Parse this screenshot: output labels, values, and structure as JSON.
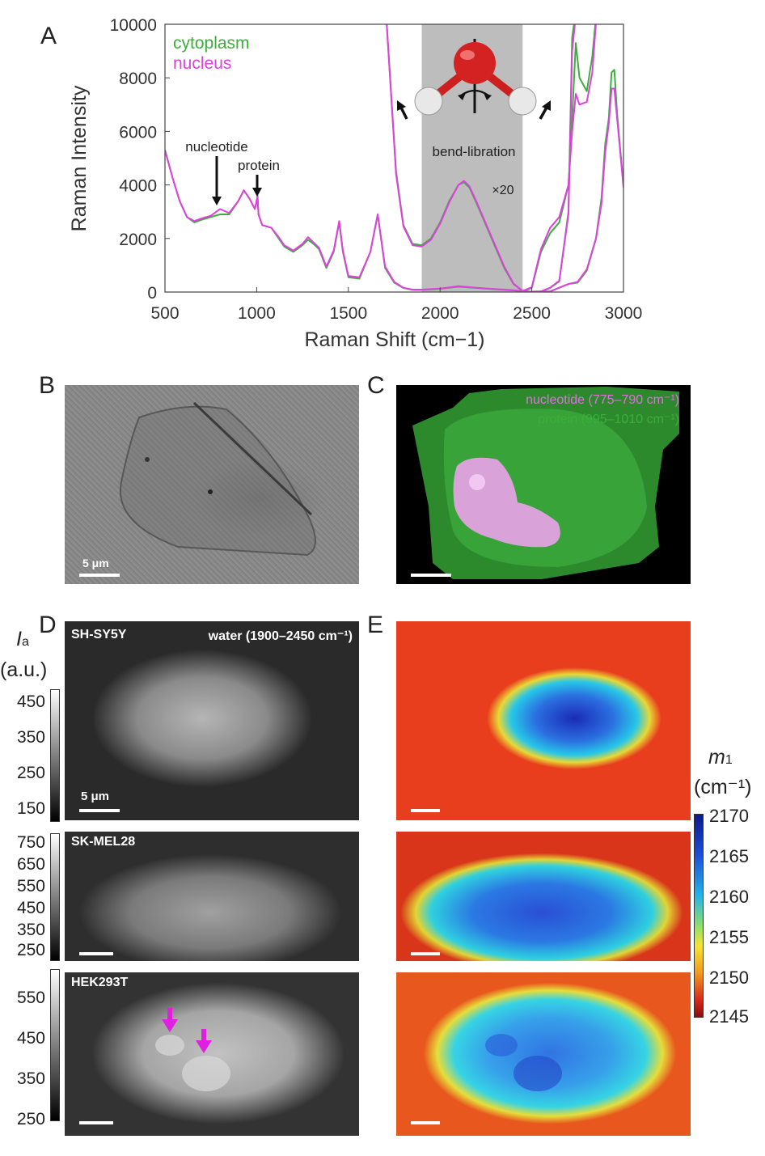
{
  "panel_letters": {
    "A": "A",
    "B": "B",
    "C": "C",
    "D": "D",
    "E": "E"
  },
  "chart_data": {
    "type": "line",
    "xlabel": "Raman Shift (cm−1)",
    "ylabel": "Raman Intensity",
    "xlim": [
      500,
      3000
    ],
    "ylim": [
      0,
      10000
    ],
    "x_ticks": [
      500,
      1000,
      1500,
      2000,
      2500,
      3000
    ],
    "y_ticks": [
      0,
      2000,
      4000,
      6000,
      8000,
      10000
    ],
    "shaded_region": [
      1900,
      2450
    ],
    "annotations": {
      "nucleotide": "nucleotide",
      "protein": "protein",
      "bend_libration": "bend-libration",
      "scale": "×20"
    },
    "series": [
      {
        "name": "cytoplasm",
        "color": "#3cae3c",
        "x": [
          500,
          540,
          580,
          620,
          660,
          700,
          750,
          800,
          850,
          900,
          930,
          960,
          990,
          1005,
          1010,
          1030,
          1080,
          1120,
          1150,
          1200,
          1250,
          1280,
          1310,
          1340,
          1380,
          1420,
          1450,
          1470,
          1500,
          1560,
          1620,
          1660,
          1700,
          1750,
          1800,
          1850,
          1900,
          1950,
          2000,
          2100,
          2200,
          2300,
          2400,
          2450,
          2500,
          2550,
          2600,
          2650,
          2700,
          2720,
          2750,
          2800,
          2850,
          2900,
          2935,
          2960,
          2980,
          3000
        ],
        "y": [
          5300,
          4300,
          3400,
          2800,
          2600,
          2700,
          2800,
          2900,
          2900,
          3400,
          3800,
          3500,
          3100,
          3500,
          2900,
          2500,
          2400,
          2000,
          1700,
          1500,
          1750,
          1950,
          1800,
          1600,
          900,
          1500,
          2600,
          1500,
          550,
          500,
          1500,
          2900,
          900,
          350,
          150,
          80,
          80,
          100,
          120,
          200,
          150,
          100,
          60,
          30,
          10,
          20,
          150,
          400,
          3000,
          9500,
          11000,
          11000,
          11000,
          11000,
          11000,
          11000,
          11000,
          11000
        ]
      },
      {
        "name": "nucleus",
        "color": "#e040e0",
        "x": [
          500,
          540,
          580,
          620,
          660,
          700,
          750,
          800,
          850,
          900,
          930,
          960,
          990,
          1005,
          1010,
          1030,
          1080,
          1120,
          1150,
          1200,
          1250,
          1280,
          1310,
          1340,
          1380,
          1420,
          1450,
          1470,
          1500,
          1560,
          1620,
          1660,
          1700,
          1750,
          1800,
          1850,
          1900,
          1950,
          2000,
          2100,
          2200,
          2300,
          2400,
          2450,
          2500,
          2550,
          2600,
          2650,
          2700,
          2720,
          2750,
          2800,
          2850,
          2900,
          2935,
          2960,
          2980,
          3000
        ],
        "y": [
          5300,
          4300,
          3400,
          2800,
          2650,
          2750,
          2850,
          3100,
          2950,
          3400,
          3800,
          3500,
          3100,
          3600,
          2900,
          2500,
          2400,
          2050,
          1750,
          1550,
          1800,
          2050,
          1850,
          1650,
          950,
          1550,
          2650,
          1550,
          600,
          550,
          1500,
          2900,
          950,
          380,
          160,
          90,
          90,
          110,
          130,
          220,
          160,
          110,
          70,
          35,
          15,
          25,
          160,
          420,
          2900,
          9000,
          11000,
          11000,
          11000,
          11000,
          11000,
          11000,
          11000,
          11000
        ]
      },
      {
        "name": "cytoplasm_x20",
        "color": "#3cae3c",
        "x": [
          1700,
          1760,
          1800,
          1850,
          1900,
          1950,
          2000,
          2050,
          2100,
          2130,
          2160,
          2200,
          2250,
          2300,
          2350,
          2400,
          2450,
          2500,
          2550,
          2600,
          2650,
          2700,
          2720,
          2740,
          2760,
          2800,
          2830,
          2860,
          2880,
          2900,
          2920,
          2940,
          2960,
          2980,
          3000
        ],
        "y": [
          11000,
          4500,
          2500,
          1800,
          1750,
          2000,
          2600,
          3400,
          4000,
          4100,
          3900,
          3300,
          2500,
          1700,
          900,
          300,
          30,
          150,
          1500,
          2200,
          2600,
          4000,
          6500,
          9300,
          8000,
          7500,
          8800,
          11000,
          11000,
          11000,
          11000,
          11000,
          11000,
          11000,
          11000
        ]
      },
      {
        "name": "nucleus_x20",
        "color": "#e040e0",
        "x": [
          1700,
          1760,
          1800,
          1850,
          1900,
          1950,
          2000,
          2050,
          2100,
          2130,
          2160,
          2200,
          2250,
          2300,
          2350,
          2400,
          2450,
          2500,
          2550,
          2600,
          2650,
          2700,
          2720,
          2740,
          2760,
          2800,
          2830,
          2860,
          2880,
          2900,
          2920,
          2940,
          2960,
          2980,
          3000
        ],
        "y": [
          11000,
          4400,
          2450,
          1750,
          1700,
          1950,
          2550,
          3350,
          4000,
          4150,
          3950,
          3350,
          2550,
          1750,
          950,
          320,
          40,
          180,
          1600,
          2400,
          2800,
          4000,
          6000,
          7400,
          7000,
          7100,
          8200,
          11000,
          11000,
          11000,
          11000,
          11000,
          11000,
          11000,
          11000
        ]
      },
      {
        "name": "cytoplasm_ch",
        "color": "#3cae3c",
        "x": [
          2500,
          2600,
          2700,
          2750,
          2800,
          2850,
          2880,
          2900,
          2920,
          2935,
          2950,
          2965,
          2980,
          3000
        ],
        "y": [
          10,
          20,
          300,
          350,
          800,
          2000,
          3500,
          5500,
          6500,
          8200,
          8300,
          6700,
          5500,
          4000
        ]
      },
      {
        "name": "nucleus_ch",
        "color": "#e040e0",
        "x": [
          2500,
          2600,
          2700,
          2750,
          2800,
          2850,
          2880,
          2900,
          2920,
          2935,
          2950,
          2965,
          2980,
          3000
        ],
        "y": [
          15,
          25,
          300,
          380,
          850,
          2000,
          3300,
          5200,
          6300,
          7600,
          7600,
          6500,
          5400,
          3900
        ]
      }
    ],
    "legend": [
      {
        "label": "cytoplasm",
        "color": "#3cae3c"
      },
      {
        "label": "nucleus",
        "color": "#e040e0"
      }
    ]
  },
  "panel_b": {
    "scalebar_label": "5 μm"
  },
  "panel_c": {
    "label_nucleotide": "nucleotide (775–790 cm⁻¹)",
    "label_protein": "protein (995–1010 cm⁻¹)",
    "color_nucleotide": "#e070e0",
    "color_protein": "#3cae3c"
  },
  "panel_d": {
    "colorbar_title_symbol": "I",
    "colorbar_title_sub": "a",
    "colorbar_unit": "(a.u.)",
    "water_label": "water (1900–2450 cm⁻¹)",
    "scalebar_label": "5 μm",
    "cells": [
      {
        "name": "SH-SY5Y",
        "ticks": [
          "450",
          "350",
          "250",
          "150"
        ]
      },
      {
        "name": "SK-MEL28",
        "ticks": [
          "750",
          "650",
          "550",
          "450",
          "350",
          "250"
        ]
      },
      {
        "name": "HEK293T",
        "ticks": [
          "550",
          "450",
          "350",
          "250"
        ]
      }
    ]
  },
  "panel_e": {
    "colorbar_title_symbol": "m",
    "colorbar_title_sub": "1",
    "colorbar_unit": "(cm⁻¹)",
    "ticks": [
      "2170",
      "2165",
      "2160",
      "2155",
      "2150",
      "2145"
    ]
  }
}
